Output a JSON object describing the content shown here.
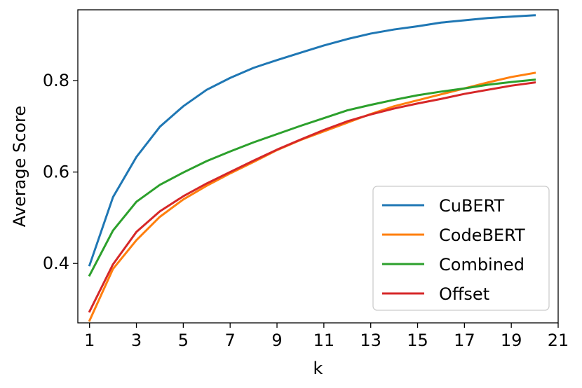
{
  "chart_data": {
    "type": "line",
    "title": "",
    "xlabel": "k",
    "ylabel": "Average Score",
    "xlim": [
      0.5,
      21
    ],
    "ylim": [
      0.27,
      0.955
    ],
    "xticks": [
      1,
      3,
      5,
      7,
      9,
      11,
      13,
      15,
      17,
      19,
      21
    ],
    "yticks": [
      0.4,
      0.6,
      0.8
    ],
    "ytick_labels": [
      "0.4",
      "0.6",
      "0.8"
    ],
    "grid": false,
    "legend_position": "lower right",
    "x": [
      1,
      2,
      3,
      4,
      5,
      6,
      7,
      8,
      9,
      10,
      11,
      12,
      13,
      14,
      15,
      16,
      17,
      18,
      19,
      20
    ],
    "series": [
      {
        "name": "CuBERT",
        "color": "#1f77b4",
        "values": [
          0.396,
          0.545,
          0.633,
          0.699,
          0.744,
          0.78,
          0.806,
          0.828,
          0.845,
          0.861,
          0.877,
          0.891,
          0.903,
          0.912,
          0.919,
          0.927,
          0.932,
          0.937,
          0.94,
          0.943
        ]
      },
      {
        "name": "CodeBERT",
        "color": "#ff7f0e",
        "values": [
          0.275,
          0.388,
          0.451,
          0.502,
          0.54,
          0.57,
          0.597,
          0.622,
          0.648,
          0.67,
          0.689,
          0.708,
          0.727,
          0.744,
          0.757,
          0.77,
          0.783,
          0.796,
          0.808,
          0.817
        ]
      },
      {
        "name": "Combined",
        "color": "#2ca02c",
        "values": [
          0.374,
          0.472,
          0.535,
          0.572,
          0.599,
          0.624,
          0.645,
          0.665,
          0.683,
          0.701,
          0.718,
          0.735,
          0.747,
          0.758,
          0.768,
          0.776,
          0.783,
          0.791,
          0.797,
          0.802
        ]
      },
      {
        "name": "Offset",
        "color": "#d62728",
        "values": [
          0.295,
          0.398,
          0.469,
          0.514,
          0.547,
          0.575,
          0.6,
          0.625,
          0.649,
          0.671,
          0.692,
          0.711,
          0.726,
          0.739,
          0.75,
          0.76,
          0.771,
          0.78,
          0.789,
          0.796
        ]
      }
    ]
  }
}
